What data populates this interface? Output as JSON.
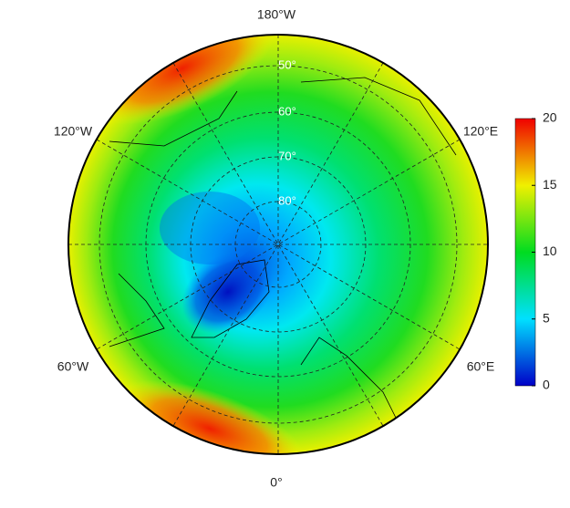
{
  "longitude_labels": [
    "180°W",
    "120°W",
    "120°E",
    "60°W",
    "60°E",
    "0°"
  ],
  "latitude_labels": [
    "50°",
    "60°",
    "70°",
    "80°"
  ],
  "colorbar": {
    "range": [
      0,
      20
    ],
    "ticks": [
      0,
      5,
      10,
      15,
      20
    ],
    "colors": [
      "#0000c8",
      "#00e0ff",
      "#00dc20",
      "#f0f000",
      "#f00000"
    ]
  }
}
